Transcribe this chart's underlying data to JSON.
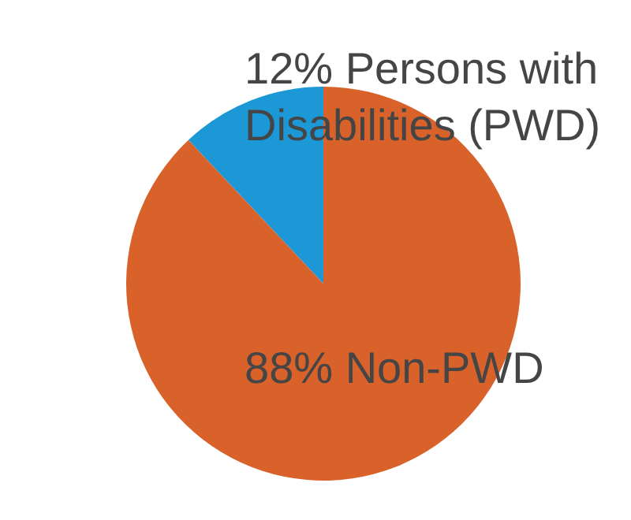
{
  "chart_data": {
    "type": "pie",
    "categories": [
      "Persons with Disabilities (PWD)",
      "Non-PWD"
    ],
    "values": [
      12,
      88
    ],
    "colors": [
      "#1b98d5",
      "#d9622b"
    ],
    "value_labels": [
      "12%",
      "88%"
    ]
  }
}
